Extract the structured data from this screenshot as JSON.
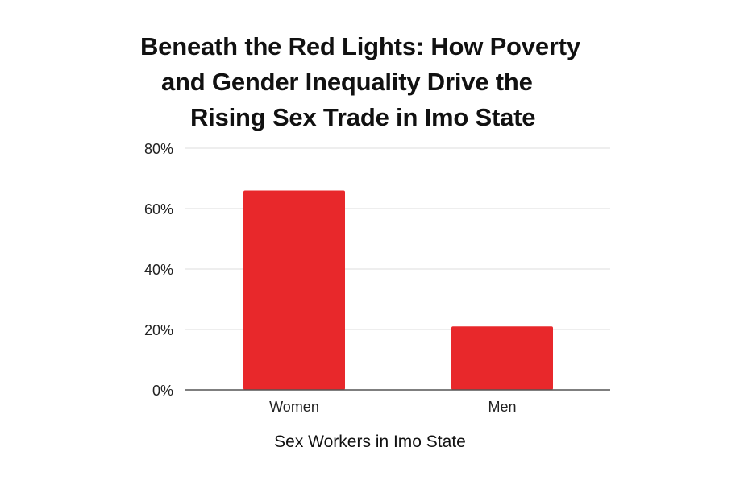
{
  "chart_data": {
    "type": "bar",
    "title_lines": [
      "Beneath the Red Lights: How Poverty",
      "and Gender Inequality Drive the",
      "Rising Sex Trade in Imo State"
    ],
    "categories": [
      "Women",
      "Men"
    ],
    "values": [
      66,
      21
    ],
    "xlabel": "Sex Workers in Imo State",
    "ylabel": "",
    "ylim": [
      0,
      80
    ],
    "yticks": [
      "0%",
      "20%",
      "40%",
      "60%",
      "80%"
    ],
    "grid": true,
    "bar_color": "#E8282B",
    "gridline_color": "#DDDDDD",
    "baseline_color": "#555555"
  }
}
